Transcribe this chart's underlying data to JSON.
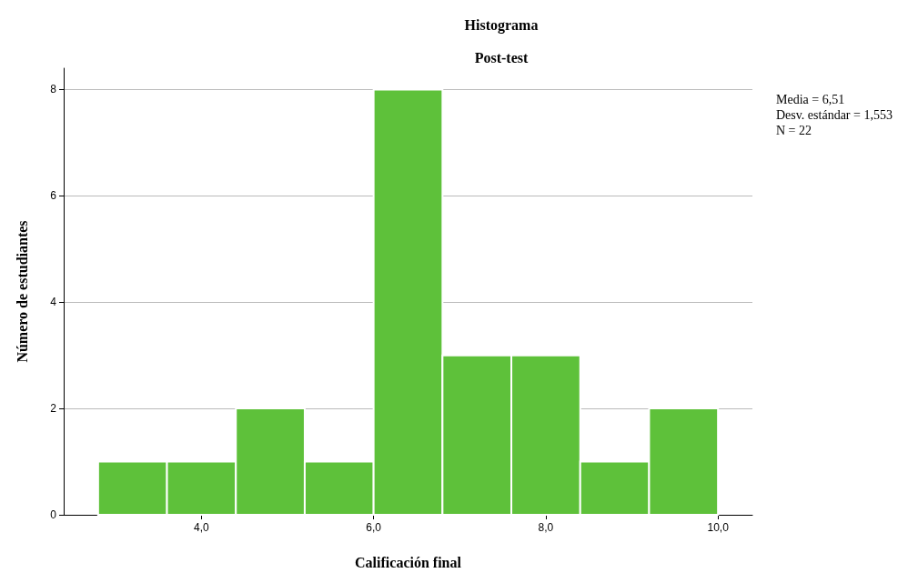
{
  "chart_data": {
    "type": "histogram",
    "title": "Histograma",
    "subtitle": "Post-test",
    "xlabel": "Calificación final",
    "ylabel": "Número de estudiantes",
    "bins": [
      2.8,
      3.6,
      4.4,
      5.2,
      6.0,
      6.8,
      7.6,
      8.4,
      9.2,
      10.0
    ],
    "values": [
      1,
      1,
      2,
      1,
      8,
      3,
      3,
      1,
      2
    ],
    "color": "#5ec13a",
    "xlim": [
      2.4,
      10.4
    ],
    "xticks": [
      {
        "value": 4,
        "label": "4,0"
      },
      {
        "value": 6,
        "label": "6,0"
      },
      {
        "value": 8,
        "label": "8,0"
      },
      {
        "value": 10,
        "label": "10,0"
      }
    ],
    "ylim": [
      0,
      8.4
    ],
    "yticks": [
      0,
      2,
      4,
      6,
      8
    ],
    "grid": "y",
    "annotations": [
      "Media = 6,51",
      "Desv. estándar = 1,553",
      "N = 22"
    ]
  }
}
